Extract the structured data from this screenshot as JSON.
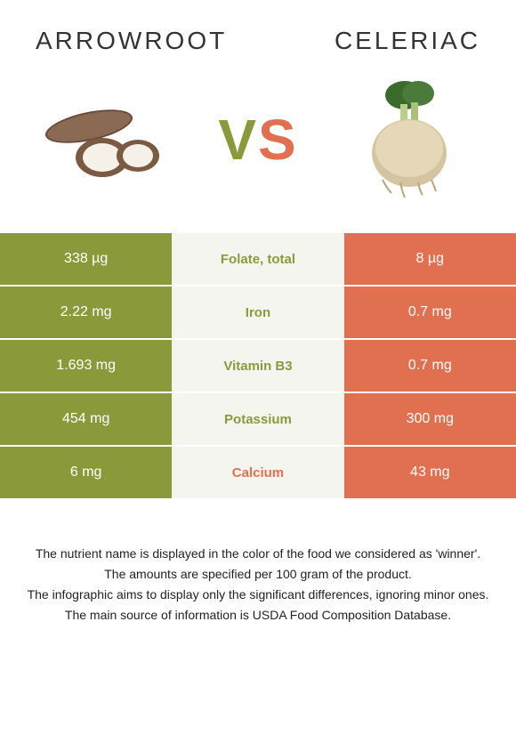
{
  "colors": {
    "left": "#8a9a3a",
    "right": "#e07050",
    "mid_bg": "#f5f5f0"
  },
  "header": {
    "left_title": "ARROWROOT",
    "right_title": "CELERIAC",
    "vs_v": "V",
    "vs_s": "S"
  },
  "rows": [
    {
      "left": "338 µg",
      "label": "Folate, total",
      "right": "8 µg",
      "winner": "left"
    },
    {
      "left": "2.22 mg",
      "label": "Iron",
      "right": "0.7 mg",
      "winner": "left"
    },
    {
      "left": "1.693 mg",
      "label": "Vitamin B3",
      "right": "0.7 mg",
      "winner": "left"
    },
    {
      "left": "454 mg",
      "label": "Potassium",
      "right": "300 mg",
      "winner": "left"
    },
    {
      "left": "6 mg",
      "label": "Calcium",
      "right": "43 mg",
      "winner": "right"
    }
  ],
  "footnotes": [
    "The nutrient name is displayed in the color of the food we considered as 'winner'.",
    "The amounts are specified per 100 gram of the product.",
    "The infographic aims to display only the significant differences, ignoring minor ones.",
    "The main source of information is USDA Food Composition Database."
  ]
}
